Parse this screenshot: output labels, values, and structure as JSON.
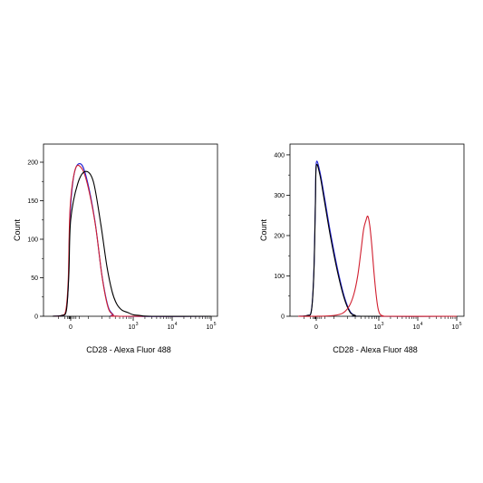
{
  "chart_data": [
    {
      "type": "line",
      "xlabel": "CD28 - Alexa Fluor 488",
      "ylabel": "Count",
      "x_scale": "biexponential",
      "xticks": [
        {
          "value": 0,
          "label": "0",
          "exp": ""
        },
        {
          "value": 1000,
          "label": "10",
          "exp": "3"
        },
        {
          "value": 10000,
          "label": "10",
          "exp": "4"
        },
        {
          "value": 100000,
          "label": "10",
          "exp": "5"
        }
      ],
      "ylim": [
        0,
        220
      ],
      "yticks": [
        0,
        50,
        100,
        150,
        200
      ],
      "ytick_labels": [
        "0",
        "50",
        "100",
        "150",
        "200"
      ],
      "series": [
        {
          "color": "#1f1fd6",
          "points": [
            [
              -300,
              0
            ],
            [
              -150,
              1
            ],
            [
              -80,
              6
            ],
            [
              -40,
              40
            ],
            [
              -10,
              130
            ],
            [
              20,
              185
            ],
            [
              55,
              198
            ],
            [
              90,
              180
            ],
            [
              140,
              125
            ],
            [
              200,
              55
            ],
            [
              270,
              15
            ],
            [
              350,
              3
            ],
            [
              500,
              0
            ],
            [
              100000,
              0
            ]
          ]
        },
        {
          "color": "#d11f2f",
          "points": [
            [
              -300,
              0
            ],
            [
              -150,
              1
            ],
            [
              -80,
              8
            ],
            [
              -40,
              48
            ],
            [
              -10,
              140
            ],
            [
              25,
              190
            ],
            [
              60,
              193
            ],
            [
              95,
              172
            ],
            [
              145,
              118
            ],
            [
              205,
              50
            ],
            [
              275,
              12
            ],
            [
              360,
              2
            ],
            [
              500,
              0
            ],
            [
              100000,
              0
            ]
          ]
        },
        {
          "color": "#000000",
          "points": [
            [
              -300,
              0
            ],
            [
              -150,
              1
            ],
            [
              -70,
              8
            ],
            [
              -30,
              55
            ],
            [
              0,
              125
            ],
            [
              40,
              172
            ],
            [
              85,
              188
            ],
            [
              130,
              175
            ],
            [
              190,
              120
            ],
            [
              260,
              65
            ],
            [
              340,
              32
            ],
            [
              430,
              16
            ],
            [
              560,
              8
            ],
            [
              750,
              5
            ],
            [
              1000,
              2
            ],
            [
              1500,
              1
            ],
            [
              3000,
              0
            ],
            [
              100000,
              0
            ]
          ]
        }
      ]
    },
    {
      "type": "line",
      "xlabel": "CD28 - Alexa Fluor 488",
      "ylabel": "Count",
      "x_scale": "biexponential",
      "xticks": [
        {
          "value": 0,
          "label": "0",
          "exp": ""
        },
        {
          "value": 1000,
          "label": "10",
          "exp": "3"
        },
        {
          "value": 10000,
          "label": "10",
          "exp": "4"
        },
        {
          "value": 100000,
          "label": "10",
          "exp": "5"
        }
      ],
      "ylim": [
        0,
        420
      ],
      "yticks": [
        0,
        100,
        200,
        300,
        400
      ],
      "ytick_labels": [
        "0",
        "100",
        "200",
        "300",
        "400"
      ],
      "series": [
        {
          "color": "#1f1fd6",
          "points": [
            [
              -300,
              0
            ],
            [
              -150,
              2
            ],
            [
              -80,
              15
            ],
            [
              -40,
              110
            ],
            [
              -15,
              280
            ],
            [
              0,
              380
            ],
            [
              20,
              360
            ],
            [
              45,
              300
            ],
            [
              80,
              210
            ],
            [
              120,
              120
            ],
            [
              170,
              50
            ],
            [
              230,
              12
            ],
            [
              300,
              2
            ],
            [
              400,
              0
            ],
            [
              100000,
              0
            ]
          ]
        },
        {
          "color": "#000000",
          "points": [
            [
              -300,
              0
            ],
            [
              -150,
              2
            ],
            [
              -80,
              14
            ],
            [
              -40,
              105
            ],
            [
              -15,
              270
            ],
            [
              0,
              372
            ],
            [
              20,
              352
            ],
            [
              45,
              290
            ],
            [
              80,
              200
            ],
            [
              120,
              112
            ],
            [
              170,
              45
            ],
            [
              230,
              10
            ],
            [
              300,
              2
            ],
            [
              400,
              0
            ],
            [
              100000,
              0
            ]
          ]
        },
        {
          "color": "#d11f2f",
          "points": [
            [
              -300,
              0
            ],
            [
              0,
              0
            ],
            [
              100,
              2
            ],
            [
              160,
              8
            ],
            [
              220,
              25
            ],
            [
              280,
              55
            ],
            [
              340,
              100
            ],
            [
              400,
              160
            ],
            [
              460,
              215
            ],
            [
              520,
              238
            ],
            [
              570,
              248
            ],
            [
              630,
              225
            ],
            [
              700,
              175
            ],
            [
              780,
              110
            ],
            [
              870,
              55
            ],
            [
              960,
              20
            ],
            [
              1080,
              5
            ],
            [
              1300,
              1
            ],
            [
              1700,
              0
            ],
            [
              100000,
              0
            ]
          ]
        }
      ]
    }
  ]
}
